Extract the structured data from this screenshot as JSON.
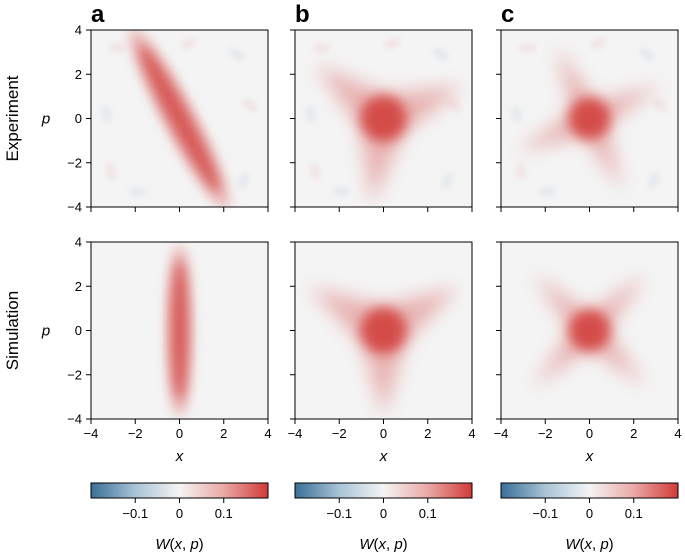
{
  "colors": {
    "negative": "#3a6f96",
    "neutral": "#f4f4f4",
    "positive": "#d13a38",
    "axes": "#000000"
  },
  "chart_data": {
    "type": "heatmap",
    "layout": "2 rows x 3 columns of Wigner function density plots with shared colorbar per column",
    "panels": [
      "a",
      "b",
      "c"
    ],
    "rows": [
      "Experiment",
      "Simulation"
    ],
    "xlabel": "x",
    "ylabel": "p",
    "xlim": [
      -4,
      4
    ],
    "ylim": [
      -4,
      4
    ],
    "xticks": [
      -4,
      -2,
      0,
      2,
      4
    ],
    "yticks": [
      -4,
      -2,
      0,
      2,
      4
    ],
    "colorbar": {
      "label": "W(x, p)",
      "range": [
        -0.2,
        0.2
      ],
      "ticks": [
        -0.1,
        0,
        0.1
      ],
      "ticklabels": [
        "−0.1",
        "0",
        "0.1"
      ],
      "colormap": "diverging blue-white-red"
    },
    "states": [
      {
        "panel": "a",
        "state": "squeezed",
        "experiment_rotation_deg": 28,
        "peak": 0.1
      },
      {
        "panel": "b",
        "state": "three-fold (triangular) symmetric",
        "arms": 3,
        "peak": 0.15
      },
      {
        "panel": "c",
        "state": "four-fold (star) symmetric",
        "arms": 4,
        "peak": 0.15
      }
    ]
  }
}
